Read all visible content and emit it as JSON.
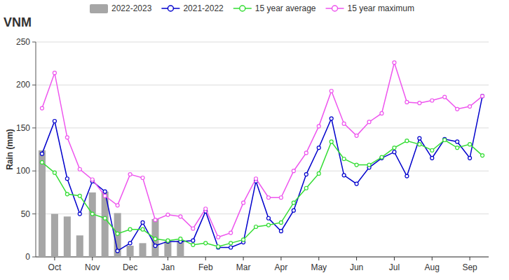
{
  "chart_data": {
    "type": "bar",
    "title": "VNM",
    "y_label": "Rain (mm)",
    "categories": [
      null,
      "Oct",
      null,
      null,
      "Nov",
      null,
      null,
      "Dec",
      null,
      null,
      "Jan",
      null,
      null,
      "Feb",
      null,
      null,
      "Mar",
      null,
      null,
      "Apr",
      null,
      null,
      "May",
      null,
      null,
      "Jun",
      null,
      null,
      "Jul",
      null,
      null,
      "Aug",
      null,
      null,
      "Sep",
      null
    ],
    "ylim": [
      0,
      250
    ],
    "yticks": [
      0,
      50,
      100,
      150,
      200,
      250
    ],
    "grid": true,
    "legend": "top",
    "series": [
      {
        "name": "2022-2023",
        "type": "bar",
        "color": "#a6a6a6",
        "values": [
          124,
          50,
          47,
          25,
          75,
          76,
          51,
          13,
          16,
          44,
          18,
          19,
          null,
          null,
          null,
          null,
          null,
          null,
          null,
          null,
          null,
          null,
          null,
          null,
          null,
          null,
          null,
          null,
          null,
          null,
          null,
          null,
          null,
          null,
          null,
          null
        ]
      },
      {
        "name": "2021-2022",
        "type": "line",
        "marker": "circle",
        "color": "#0000cc",
        "values": [
          120,
          158,
          91,
          50,
          88,
          76,
          7,
          16,
          40,
          13,
          18,
          18,
          19,
          53,
          11,
          11,
          17,
          88,
          45,
          30,
          54,
          96,
          127,
          161,
          95,
          85,
          104,
          115,
          122,
          94,
          138,
          115,
          137,
          134,
          115,
          187
        ]
      },
      {
        "name": "15 year average",
        "type": "line",
        "marker": "circle",
        "color": "#33dd33",
        "values": [
          110,
          98,
          73,
          71,
          50,
          45,
          27,
          32,
          32,
          21,
          19,
          21,
          14,
          16,
          12,
          16,
          20,
          35,
          37,
          40,
          63,
          80,
          97,
          134,
          114,
          107,
          107,
          116,
          127,
          135,
          131,
          124,
          136,
          127,
          131,
          118
        ]
      },
      {
        "name": "15 year maximum",
        "type": "line",
        "marker": "circle",
        "color": "#ee55ee",
        "values": [
          173,
          214,
          139,
          102,
          90,
          71,
          60,
          96,
          92,
          43,
          49,
          47,
          33,
          56,
          23,
          28,
          63,
          91,
          69,
          69,
          100,
          121,
          152,
          193,
          155,
          141,
          157,
          167,
          226,
          180,
          179,
          182,
          186,
          172,
          175,
          187
        ]
      }
    ]
  }
}
